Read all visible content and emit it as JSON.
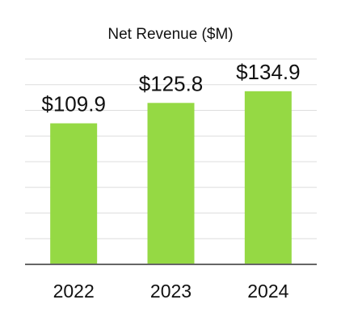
{
  "chart_data": {
    "type": "bar",
    "title": "Net Revenue ($M)",
    "categories": [
      "2022",
      "2023",
      "2024"
    ],
    "values": [
      109.9,
      125.8,
      134.9
    ],
    "data_labels": [
      "$109.9",
      "$125.8",
      "$134.9"
    ],
    "xlabel": "",
    "ylabel": "",
    "ylim": [
      0,
      160
    ],
    "grid": true,
    "colors": {
      "bar": "#95d944",
      "grid": "#dddddd",
      "axis": "#666666",
      "text": "#111111"
    }
  }
}
